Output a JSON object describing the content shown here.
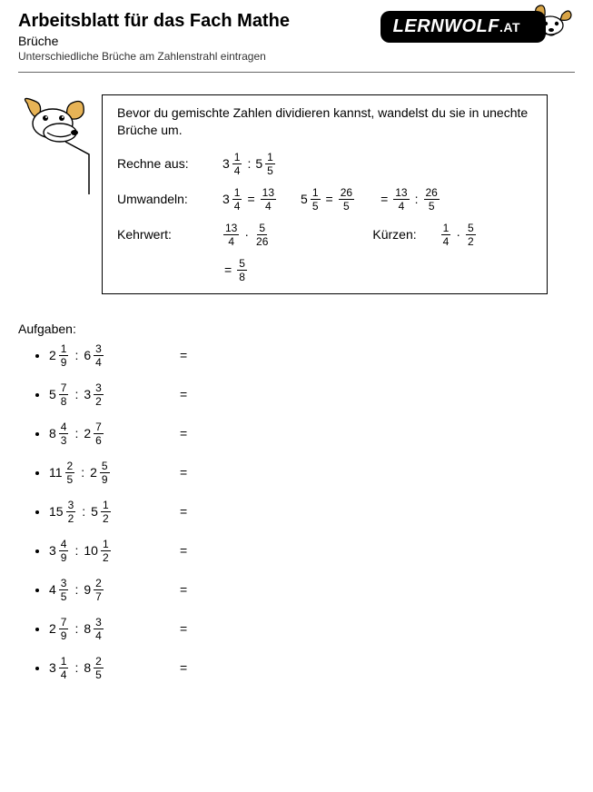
{
  "header": {
    "title": "Arbeitsblatt für das Fach Mathe",
    "subtitle": "Brüche",
    "subtitle2": "Unterschiedliche Brüche am Zahlenstrahl eintragen",
    "logo_text": "LERNWOLF",
    "logo_suffix": ".AT"
  },
  "example": {
    "intro": "Bevor du gemischte Zahlen dividieren kannst, wandelst du sie in unechte Brüche um.",
    "row1": {
      "label": "Rechne aus:",
      "a_whole": "3",
      "a_num": "1",
      "a_den": "4",
      "b_whole": "5",
      "b_num": "1",
      "b_den": "5"
    },
    "row2": {
      "label": "Umwandeln:",
      "a_whole": "3",
      "a_num": "1",
      "a_den": "4",
      "a_res_num": "13",
      "a_res_den": "4",
      "b_whole": "5",
      "b_num": "1",
      "b_den": "5",
      "b_res_num": "26",
      "b_res_den": "5",
      "combine_left_num": "13",
      "combine_left_den": "4",
      "combine_right_num": "26",
      "combine_right_den": "5"
    },
    "row3": {
      "label": "Kehrwert:",
      "left_num": "13",
      "left_den": "4",
      "right_num": "5",
      "right_den": "26",
      "label2": "Kürzen:",
      "k_left_num": "1",
      "k_left_den": "4",
      "k_right_num": "5",
      "k_right_den": "2"
    },
    "result": {
      "num": "5",
      "den": "8"
    }
  },
  "tasks_label": "Aufgaben:",
  "tasks": [
    {
      "a_whole": "2",
      "a_num": "1",
      "a_den": "9",
      "b_whole": "6",
      "b_num": "3",
      "b_den": "4"
    },
    {
      "a_whole": "5",
      "a_num": "7",
      "a_den": "8",
      "b_whole": "3",
      "b_num": "3",
      "b_den": "2"
    },
    {
      "a_whole": "8",
      "a_num": "4",
      "a_den": "3",
      "b_whole": "2",
      "b_num": "7",
      "b_den": "6"
    },
    {
      "a_whole": "11",
      "a_num": "2",
      "a_den": "5",
      "b_whole": "2",
      "b_num": "5",
      "b_den": "9"
    },
    {
      "a_whole": "15",
      "a_num": "3",
      "a_den": "2",
      "b_whole": "5",
      "b_num": "1",
      "b_den": "2"
    },
    {
      "a_whole": "3",
      "a_num": "4",
      "a_den": "9",
      "b_whole": "10",
      "b_num": "1",
      "b_den": "2"
    },
    {
      "a_whole": "4",
      "a_num": "3",
      "a_den": "5",
      "b_whole": "9",
      "b_num": "2",
      "b_den": "7"
    },
    {
      "a_whole": "2",
      "a_num": "7",
      "a_den": "9",
      "b_whole": "8",
      "b_num": "3",
      "b_den": "4"
    },
    {
      "a_whole": "3",
      "a_num": "1",
      "a_den": "4",
      "b_whole": "8",
      "b_num": "2",
      "b_den": "5"
    }
  ]
}
